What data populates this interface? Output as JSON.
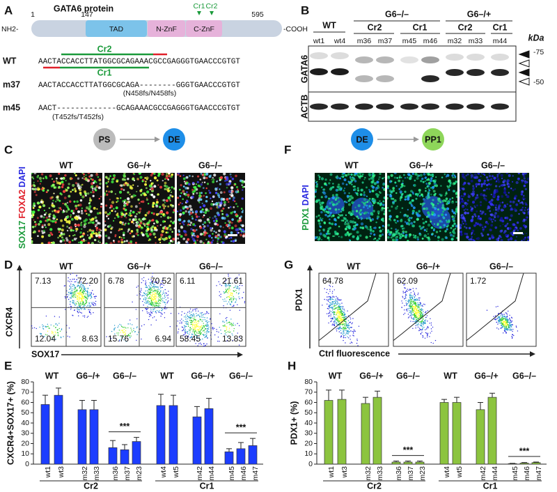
{
  "protein": {
    "label": "A",
    "title": "GATA6 protein",
    "positions": [
      "1",
      "147",
      "595"
    ],
    "n_term": "NH2-",
    "c_term": "-COOH",
    "domains": [
      "TAD",
      "N-ZnF",
      "C-ZnF"
    ],
    "guides": [
      "Cr1",
      "Cr2"
    ]
  },
  "sequences": {
    "guides": [
      "Cr2",
      "Cr1"
    ],
    "rows": [
      {
        "name": "WT",
        "seq": "AACTACCACCTTATGGCGCAGAAACGCCGAGGGTGAACCCGTGT"
      },
      {
        "name": "m37",
        "seq": "AACTACCACCTTATGGCGCAGA--------GGGTGAACCCGTGT",
        "note": "(N458fs/N458fs)"
      },
      {
        "name": "m45",
        "seq": "AACT-------------GCAGAAACGCCGAGGGTGAACCCGTGT",
        "note": "(T452fs/T452fs)"
      }
    ]
  },
  "blot": {
    "label": "B",
    "groups": [
      "WT",
      "G6–/–",
      "G6–/+"
    ],
    "subgroups": [
      "Cr2",
      "Cr1",
      "Cr2",
      "Cr1"
    ],
    "lanes": [
      "wt1",
      "wt4",
      "m36",
      "m37",
      "m45",
      "m46",
      "m32",
      "m33",
      "m44"
    ],
    "rows": [
      "GATA6",
      "ACTB"
    ],
    "unit": "kDa",
    "markers": [
      "-75",
      "-50"
    ]
  },
  "differentiation": [
    {
      "label": "C",
      "from": "PS",
      "to": "DE",
      "columns": [
        "WT",
        "G6–/+",
        "G6–/–"
      ],
      "stains": [
        "SOX17",
        "FOXA2",
        "DAPI"
      ]
    },
    {
      "label": "F",
      "from": "DE",
      "to": "PP1",
      "columns": [
        "WT",
        "G6–/+",
        "G6–/–"
      ],
      "stains": [
        "PDX1",
        "DAPI"
      ]
    }
  ],
  "flow": [
    {
      "label": "D",
      "columns": [
        "WT",
        "G6–/+",
        "G6–/–"
      ],
      "ylabel": "CXCR4",
      "xlabel": "SOX17",
      "quadrants": [
        [
          "7.13",
          "72.20",
          "12.04",
          "8.63"
        ],
        [
          "6.78",
          "70.52",
          "15.76",
          "6.94"
        ],
        [
          "6.11",
          "21.61",
          "58.45",
          "13.83"
        ]
      ]
    },
    {
      "label": "G",
      "columns": [
        "WT",
        "G6–/+",
        "G6–/–"
      ],
      "ylabel": "PDX1",
      "xlabel": "Ctrl fluorescence",
      "gates": [
        "64.78",
        "62.09",
        "1.72"
      ]
    }
  ],
  "chart_data": [
    {
      "type": "bar",
      "label": "E",
      "ylabel": "CXCR4+SOX17+ (%)",
      "color": "#1c3dff",
      "categories": [
        "wt1",
        "wt3",
        "m32",
        "m33",
        "m36",
        "m37",
        "m23",
        "wt4",
        "wt5",
        "m42",
        "m44",
        "m45",
        "m46",
        "m47"
      ],
      "values": [
        58,
        67,
        53,
        53,
        16,
        14,
        22,
        57,
        57,
        46,
        54,
        12,
        15,
        18
      ],
      "errors": [
        9,
        7,
        9,
        9,
        7,
        5,
        4,
        11,
        10,
        10,
        10,
        3,
        6,
        7
      ],
      "ylim": [
        0,
        80
      ],
      "yticks": [
        0,
        10,
        20,
        30,
        40,
        50,
        60,
        70,
        80
      ],
      "group_labels": [
        "WT",
        "G6–/+",
        "G6–/–",
        "WT",
        "G6–/+",
        "G6–/–"
      ],
      "construct_labels": [
        "Cr2",
        "Cr1"
      ],
      "annotations": [
        "***",
        "***"
      ]
    },
    {
      "type": "bar",
      "label": "H",
      "ylabel": "PDX1+ (%)",
      "color": "#8cc43f",
      "categories": [
        "wt1",
        "wt3",
        "m32",
        "m33",
        "m36",
        "m37",
        "m23",
        "wt4",
        "wt5",
        "m42",
        "m44",
        "m45",
        "m46",
        "m47"
      ],
      "values": [
        62,
        63,
        59,
        65,
        2,
        2,
        2,
        60,
        60,
        53,
        65,
        0.5,
        1,
        1.5
      ],
      "errors": [
        10,
        9,
        6,
        6,
        1,
        1,
        1,
        3,
        5,
        7,
        4,
        0.3,
        0.5,
        0.5
      ],
      "ylim": [
        0,
        80
      ],
      "yticks": [
        0,
        10,
        20,
        30,
        40,
        50,
        60,
        70,
        80
      ],
      "group_labels": [
        "WT",
        "G6–/+",
        "G6–/–",
        "WT",
        "G6–/+",
        "G6–/–"
      ],
      "construct_labels": [
        "Cr2",
        "Cr1"
      ],
      "annotations": [
        "***",
        "***"
      ]
    }
  ]
}
